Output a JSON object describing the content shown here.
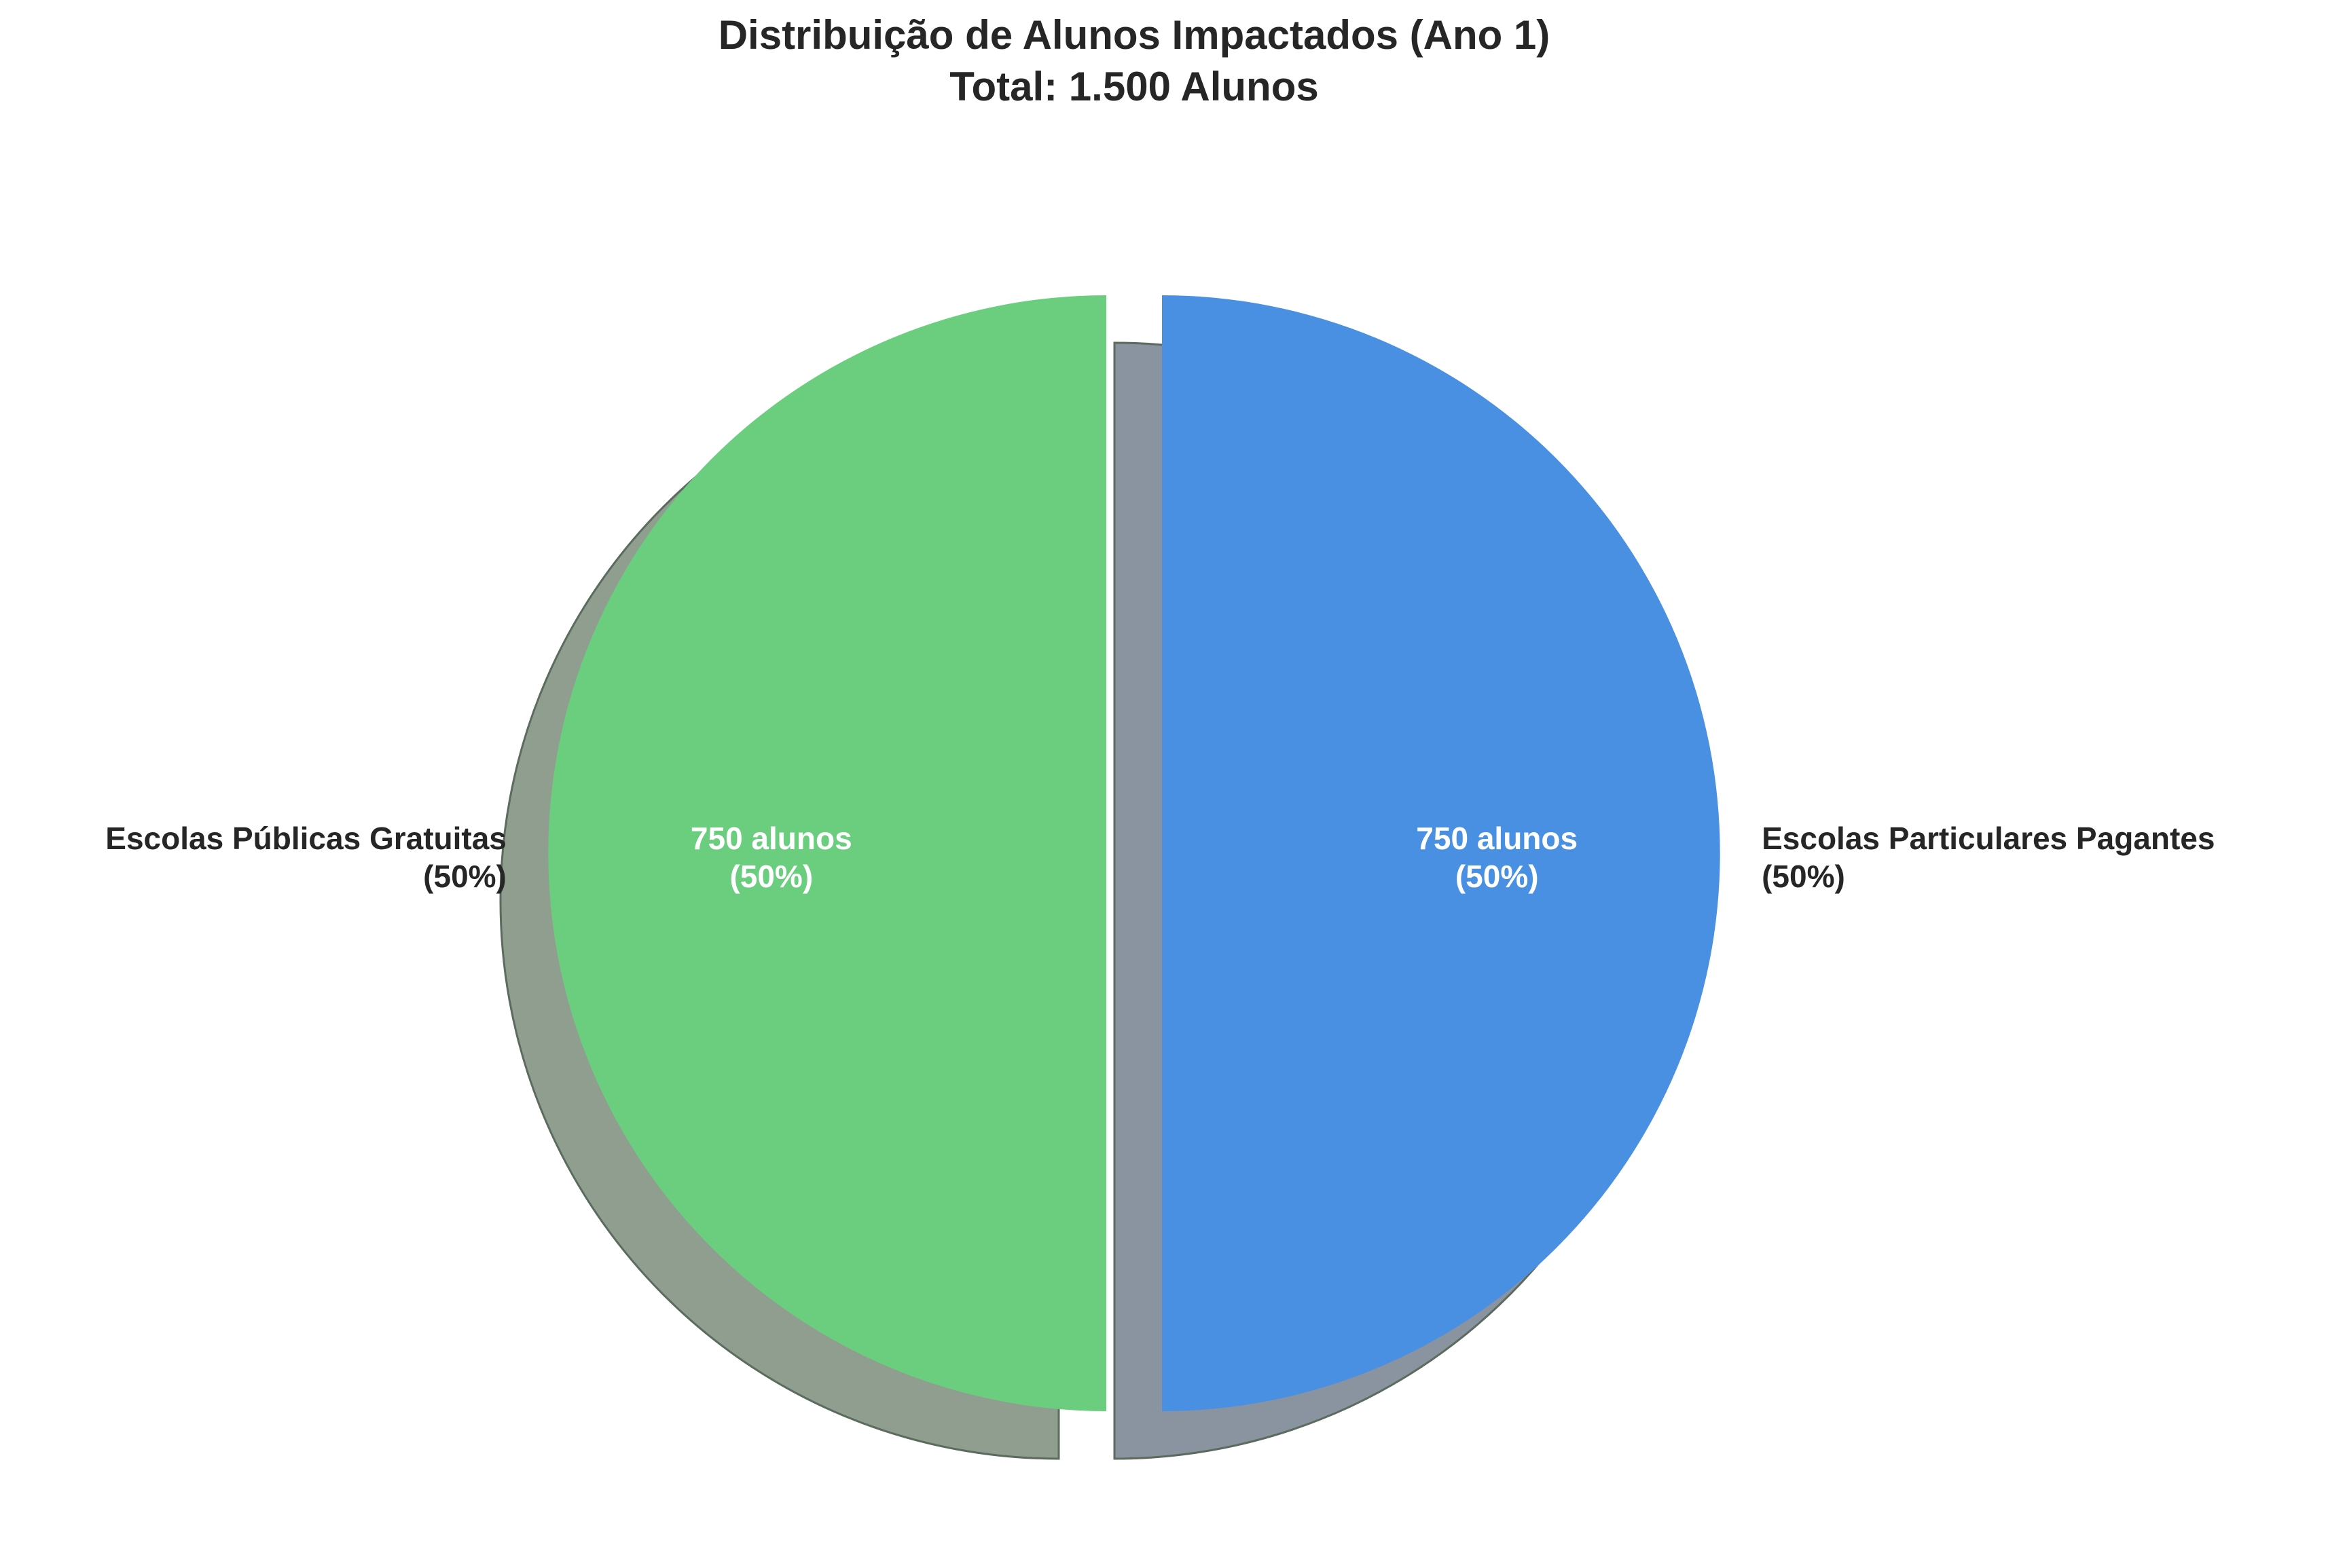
{
  "chart_data": {
    "type": "pie",
    "title": "Distribuição de Alunos Impactados (Ano 1)",
    "subtitle": "Total: 1.500 Alunos",
    "unit": "alunos",
    "total": 1500,
    "start_angle": 90,
    "direction": "counterclockwise",
    "shadow": true,
    "slices": [
      {
        "label": "Escolas Públicas Gratuitas",
        "label_pct": "(50%)",
        "value": 750,
        "percent": 50,
        "inner_value": "750 alunos",
        "inner_pct": "(50%)",
        "color": "#6bce7f",
        "shadow_color": "#8f9e8f"
      },
      {
        "label": "Escolas Particulares Pagantes",
        "label_pct": "(50%)",
        "value": 750,
        "percent": 50,
        "inner_value": "750 alunos",
        "inner_pct": "(50%)",
        "color": "#4a90e2",
        "shadow_color": "#8a93a0"
      }
    ],
    "colors": {
      "text": "#262626",
      "inner_text": "#ffffff",
      "shadow_edge": "#5b6b5e"
    }
  }
}
